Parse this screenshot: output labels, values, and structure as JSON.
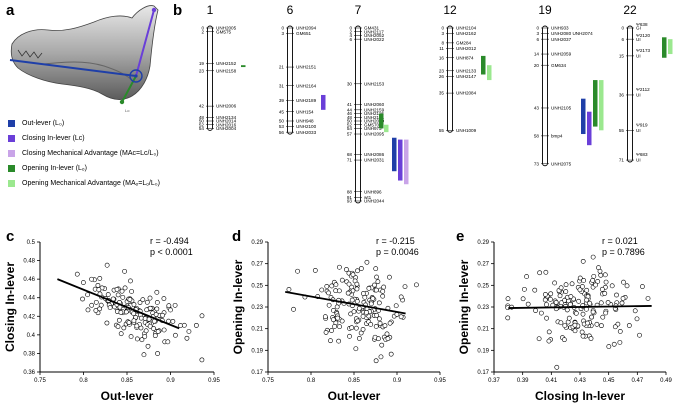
{
  "panel_labels": {
    "a": "a",
    "b": "b",
    "c": "c",
    "d": "d",
    "e": "e"
  },
  "legend": [
    {
      "label": "Out-lever  (L₀)",
      "color": "#1f3fa8"
    },
    {
      "label": "Closing In-lever  (Lᴄ)",
      "color": "#6a3fd8"
    },
    {
      "label": "Closing Mechanical Advantage  (MAᴄ=Lᴄ/L₀)",
      "color": "#c9a4e8"
    },
    {
      "label": "Opening In-lever  (Lₒ)",
      "color": "#2a8a2a"
    },
    {
      "label": "Opening Mechanical Advantage  (MAₒ=Lₒ/L₀)",
      "color": "#9be88f"
    }
  ],
  "jaw_label": "Lo",
  "chromosomes": [
    {
      "number": "1",
      "markers": [
        {
          "pos": 0,
          "name": "UNH2005"
        },
        {
          "pos": 2,
          "name": "GM575"
        },
        {
          "pos": 19,
          "name": "UNH2152"
        },
        {
          "pos": 23,
          "name": "UNH2158"
        },
        {
          "pos": 42,
          "name": "UNH2006"
        },
        {
          "pos": 48,
          "name": "UNH2134"
        },
        {
          "pos": 50,
          "name": "UNH2014"
        },
        {
          "pos": 52,
          "name": "UNH2016"
        },
        {
          "pos": 54,
          "name": "UNH2004"
        }
      ],
      "ticks": [
        0,
        2,
        19,
        23,
        42,
        48,
        50,
        52,
        54
      ]
    },
    {
      "number": "6",
      "markers": [
        {
          "pos": 0,
          "name": "UNH2094"
        },
        {
          "pos": 3,
          "name": "GM651"
        },
        {
          "pos": 21,
          "name": "UNH2151"
        },
        {
          "pos": 31,
          "name": "UNH2164"
        },
        {
          "pos": 39,
          "name": "UNH2189"
        },
        {
          "pos": 45,
          "name": "UNH154"
        },
        {
          "pos": 50,
          "name": "UNH948"
        },
        {
          "pos": 53,
          "name": "UNH2100"
        },
        {
          "pos": 56,
          "name": "UNH2033"
        }
      ],
      "ticks": [
        0,
        3,
        21,
        31,
        39,
        45,
        50,
        53,
        56
      ]
    },
    {
      "number": "7",
      "markers": [
        {
          "pos": 0,
          "name": "GM431"
        },
        {
          "pos": 2,
          "name": "UNH2117"
        },
        {
          "pos": 4,
          "name": "UNH2052"
        },
        {
          "pos": 6,
          "name": "UNH2022"
        },
        {
          "pos": 30,
          "name": "UNH2153"
        },
        {
          "pos": 41,
          "name": "UNH2060"
        },
        {
          "pos": 44,
          "name": "UNH2159"
        },
        {
          "pos": 46,
          "name": "UNH2116"
        },
        {
          "pos": 48,
          "name": "UNH2181"
        },
        {
          "pos": 50,
          "name": "UNH2099"
        },
        {
          "pos": 52,
          "name": "GM570"
        },
        {
          "pos": 54,
          "name": "UNH973"
        },
        {
          "pos": 57,
          "name": "UNH2095"
        },
        {
          "pos": 68,
          "name": "UNH2086"
        },
        {
          "pos": 71,
          "name": "UNH2031"
        },
        {
          "pos": 88,
          "name": "UNH896"
        },
        {
          "pos": 91,
          "name": "wt1"
        },
        {
          "pos": 93,
          "name": "UNH2044"
        }
      ],
      "ticks": [
        0,
        2,
        4,
        6,
        30,
        41,
        44,
        46,
        48,
        50,
        52,
        54,
        57,
        68,
        71,
        88,
        91,
        93
      ]
    },
    {
      "number": "12",
      "markers": [
        {
          "pos": 0,
          "name": "UNH2104"
        },
        {
          "pos": 3,
          "name": "UNH2162"
        },
        {
          "pos": 8,
          "name": "GM284"
        },
        {
          "pos": 11,
          "name": "UNH2012"
        },
        {
          "pos": 16,
          "name": "UNH874"
        },
        {
          "pos": 23,
          "name": "UNH2133"
        },
        {
          "pos": 26,
          "name": "UNH2147"
        },
        {
          "pos": 35,
          "name": "UNH2084"
        },
        {
          "pos": 55,
          "name": "UNH1009"
        }
      ],
      "ticks": [
        0,
        3,
        8,
        11,
        16,
        23,
        26,
        35,
        55
      ]
    },
    {
      "number": "19",
      "markers": [
        {
          "pos": 0,
          "name": "UNH933"
        },
        {
          "pos": 3,
          "name": "UNH2080 UNH2074"
        },
        {
          "pos": 6,
          "name": "UNH2037"
        },
        {
          "pos": 14,
          "name": "UNH2059"
        },
        {
          "pos": 20,
          "name": "GM634"
        },
        {
          "pos": 43,
          "name": "UNH2105"
        },
        {
          "pos": 58,
          "name": "bmp4"
        },
        {
          "pos": 73,
          "name": "UNH2075"
        }
      ],
      "ticks": [
        0,
        3,
        6,
        14,
        20,
        43,
        58,
        73
      ]
    },
    {
      "number": "22",
      "markers": [
        {
          "pos": 0,
          "name": "GI"
        },
        {
          "pos": 6,
          "name": "UI"
        },
        {
          "pos": 15,
          "name": "UI"
        },
        {
          "pos": 36,
          "name": "UI"
        },
        {
          "pos": 55,
          "name": "UI"
        },
        {
          "pos": 71,
          "name": "UI"
        }
      ],
      "top_labels": [
        {
          "pos": -2,
          "name": "Ψ638"
        },
        {
          "pos": 4,
          "name": "Ψ2120"
        },
        {
          "pos": 12,
          "name": "Ψ2173"
        },
        {
          "pos": 33,
          "name": "Ψ2112"
        },
        {
          "pos": 52,
          "name": "Ψ919"
        },
        {
          "pos": 68,
          "name": "Ψ683"
        }
      ],
      "ticks": [
        0,
        6,
        15,
        36,
        55,
        71
      ]
    }
  ],
  "chart_data": [
    {
      "type": "scatter",
      "panel": "c",
      "xlabel": "Out-lever",
      "ylabel": "Closing In-lever",
      "xlim": [
        0.75,
        0.95
      ],
      "ylim": [
        0.36,
        0.5
      ],
      "xticks": [
        "0.75",
        "0.8",
        "0.85",
        "0.9",
        "0.95"
      ],
      "yticks": [
        "0.36",
        "0.38",
        "0.4",
        "0.42",
        "0.44",
        "0.46",
        "0.48",
        "0.5"
      ],
      "stat_r": "r = -0.494",
      "stat_p": "p < 0.0001",
      "fit": {
        "x1": 0.77,
        "y1": 0.46,
        "x2": 0.91,
        "y2": 0.407
      },
      "center": [
        0.855,
        0.428
      ],
      "spread": [
        0.028,
        0.016
      ],
      "slope": -0.38,
      "n": 170,
      "seed": 11
    },
    {
      "type": "scatter",
      "panel": "d",
      "xlabel": "Out-lever",
      "ylabel": "Opening In-lever",
      "xlim": [
        0.75,
        0.95
      ],
      "ylim": [
        0.17,
        0.29
      ],
      "xticks": [
        "0.75",
        "0.8",
        "0.85",
        "0.9",
        "0.95"
      ],
      "yticks": [
        "0.17",
        "0.19",
        "0.21",
        "0.23",
        "0.25",
        "0.27",
        "0.29"
      ],
      "stat_r": "r = -0.215",
      "stat_p": "p = 0.0046",
      "fit": {
        "x1": 0.77,
        "y1": 0.244,
        "x2": 0.91,
        "y2": 0.224
      },
      "center": [
        0.855,
        0.232
      ],
      "spread": [
        0.028,
        0.018
      ],
      "slope": -0.14,
      "n": 170,
      "seed": 23
    },
    {
      "type": "scatter",
      "panel": "e",
      "xlabel": "Closing In-lever",
      "ylabel": "Opening In-lever",
      "xlim": [
        0.37,
        0.49
      ],
      "ylim": [
        0.17,
        0.29
      ],
      "xticks": [
        "0.37",
        "0.39",
        "0.41",
        "0.43",
        "0.45",
        "0.47",
        "0.49"
      ],
      "yticks": [
        "0.17",
        "0.19",
        "0.21",
        "0.23",
        "0.25",
        "0.27",
        "0.29"
      ],
      "stat_r": "r = 0.021",
      "stat_p": "p = 0.7896",
      "fit": {
        "x1": 0.38,
        "y1": 0.229,
        "x2": 0.48,
        "y2": 0.231
      },
      "center": [
        0.43,
        0.231
      ],
      "spread": [
        0.02,
        0.018
      ],
      "slope": 0.02,
      "n": 170,
      "seed": 37
    }
  ]
}
